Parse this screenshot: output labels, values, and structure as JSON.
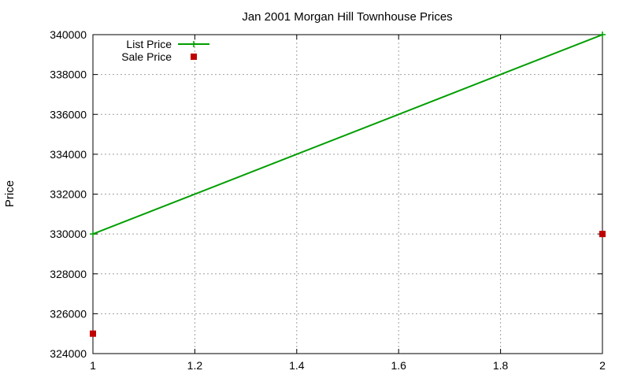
{
  "chart_data": {
    "type": "line",
    "title": "Jan 2001 Morgan Hill Townhouse Prices",
    "xlabel": "",
    "ylabel": "Price",
    "xlim": [
      1,
      2
    ],
    "ylim": [
      324000,
      340000
    ],
    "xticks": [
      1,
      1.2,
      1.4,
      1.6,
      1.8,
      2
    ],
    "xtick_labels": [
      "1",
      "1.2",
      "1.4",
      "1.6",
      "1.8",
      "2"
    ],
    "yticks": [
      324000,
      326000,
      328000,
      330000,
      332000,
      334000,
      336000,
      338000,
      340000
    ],
    "ytick_labels": [
      "324000",
      "326000",
      "328000",
      "330000",
      "332000",
      "334000",
      "336000",
      "338000",
      "340000"
    ],
    "grid": true,
    "legend_position": "top-left",
    "series": [
      {
        "name": "List Price",
        "style": "line-with-plus-markers",
        "color": "#009e00",
        "points": [
          [
            1,
            330000
          ],
          [
            2,
            340000
          ]
        ]
      },
      {
        "name": "Sale Price",
        "style": "square-markers",
        "color": "#c00000",
        "points": [
          [
            1,
            325000
          ],
          [
            2,
            330000
          ]
        ]
      }
    ]
  }
}
